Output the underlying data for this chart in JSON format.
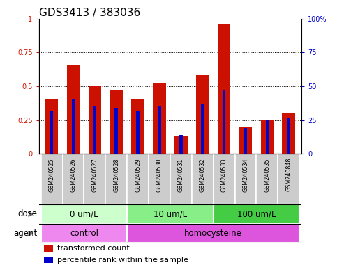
{
  "title": "GDS3413 / 383036",
  "samples": [
    "GSM240525",
    "GSM240526",
    "GSM240527",
    "GSM240528",
    "GSM240529",
    "GSM240530",
    "GSM240531",
    "GSM240532",
    "GSM240533",
    "GSM240534",
    "GSM240535",
    "GSM240848"
  ],
  "red_values": [
    0.41,
    0.66,
    0.5,
    0.47,
    0.4,
    0.52,
    0.13,
    0.58,
    0.96,
    0.2,
    0.25,
    0.3
  ],
  "blue_values": [
    0.32,
    0.4,
    0.35,
    0.34,
    0.32,
    0.35,
    0.14,
    0.37,
    0.47,
    0.19,
    0.25,
    0.27
  ],
  "dose_groups": [
    {
      "label": "0 um/L",
      "start": 0,
      "end": 4,
      "color": "#ccffcc"
    },
    {
      "label": "10 um/L",
      "start": 4,
      "end": 8,
      "color": "#88ee88"
    },
    {
      "label": "100 um/L",
      "start": 8,
      "end": 12,
      "color": "#44cc44"
    }
  ],
  "agent_groups": [
    {
      "label": "control",
      "start": 0,
      "end": 4,
      "color": "#ee88ee"
    },
    {
      "label": "homocysteine",
      "start": 4,
      "end": 12,
      "color": "#dd55dd"
    }
  ],
  "ylim": [
    0,
    1.0
  ],
  "yticks": [
    0,
    0.25,
    0.5,
    0.75,
    1.0
  ],
  "yticklabels_left": [
    "0",
    "0.25",
    "0.5",
    "0.75",
    "1"
  ],
  "yticklabels_right": [
    "0",
    "25",
    "50",
    "75",
    "100%"
  ],
  "red_color": "#cc1100",
  "blue_color": "#0000cc",
  "bar_width": 0.6,
  "blue_bar_width": 0.15,
  "cell_bg": "#cccccc",
  "plot_bg": "#ffffff",
  "title_fontsize": 11,
  "tick_fontsize": 7,
  "label_fontsize": 8.5,
  "legend_fontsize": 8
}
